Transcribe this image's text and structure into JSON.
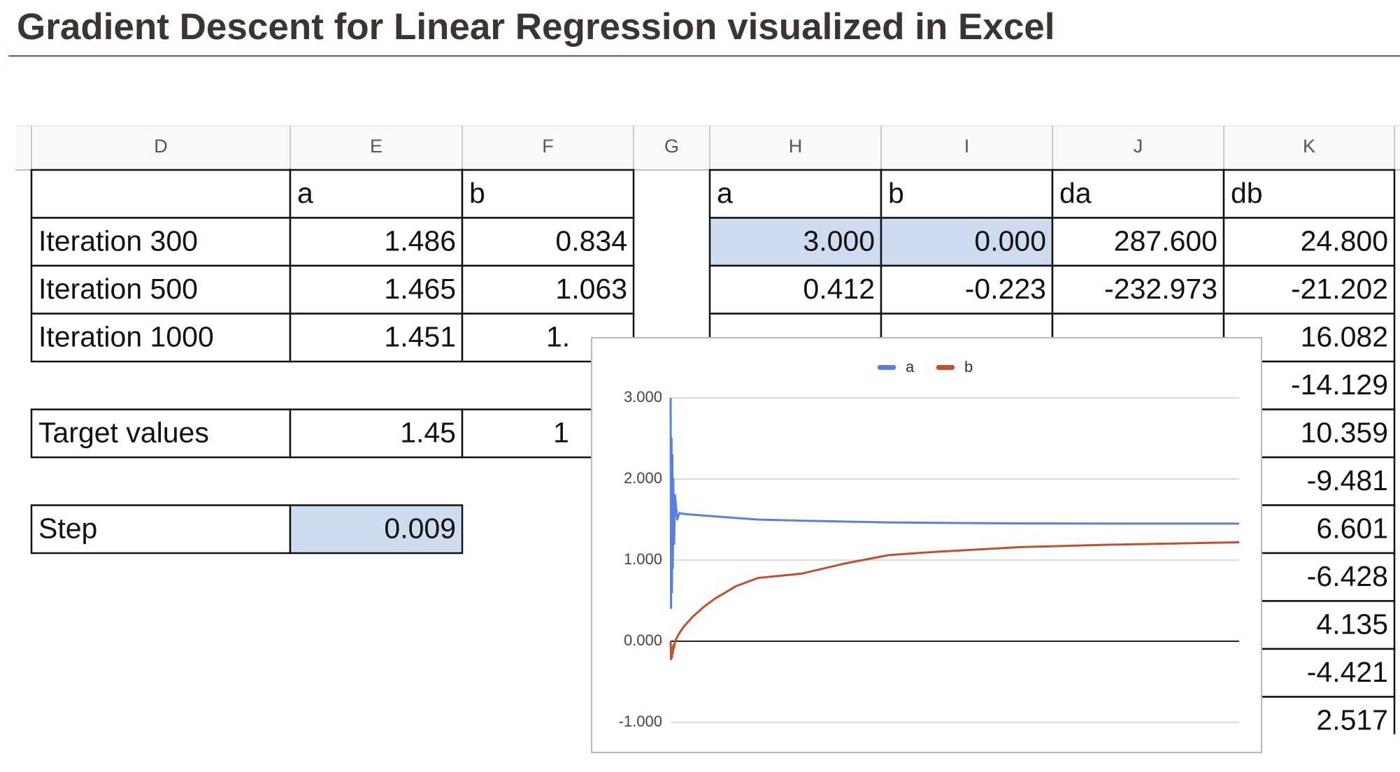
{
  "title": "Gradient Descent for Linear Regression visualized in Excel",
  "column_headers": [
    "D",
    "E",
    "F",
    "G",
    "H",
    "I",
    "J",
    "K"
  ],
  "left_table": {
    "header": [
      "a",
      "b"
    ],
    "rows": [
      [
        "Iteration 300",
        "1.486",
        "0.834"
      ],
      [
        "Iteration 500",
        "1.465",
        "1.063"
      ],
      [
        "Iteration 1000",
        "1.451",
        "1."
      ]
    ]
  },
  "target": [
    "Target values",
    "1.45",
    "1"
  ],
  "step": [
    "Step",
    "0.009"
  ],
  "right_table": {
    "header": [
      "a",
      "b",
      "da",
      "db"
    ],
    "rows": [
      [
        "3.000",
        "0.000",
        "287.600",
        "24.800"
      ],
      [
        "0.412",
        "-0.223",
        "-232.973",
        "-21.202"
      ]
    ],
    "db_more": [
      "16.082",
      "-14.129",
      "10.359",
      "-9.481",
      "6.601",
      "-6.428",
      "4.135",
      "-4.421",
      "2.517"
    ]
  },
  "chart": {
    "type": "line",
    "legend": "top",
    "x": [
      0,
      1,
      2,
      3,
      4,
      5,
      6,
      8,
      10,
      15,
      20,
      30,
      50,
      75,
      100,
      150,
      200,
      300,
      400,
      500,
      600,
      700,
      800,
      1000,
      1200,
      1300
    ],
    "xlim": [
      0,
      1300
    ],
    "ylim": [
      -1,
      3
    ],
    "yticks": [
      {
        "value": -1,
        "label": "-1.000"
      },
      {
        "value": 0,
        "label": "0.000"
      },
      {
        "value": 1,
        "label": "1.000"
      },
      {
        "value": 2,
        "label": "2.000"
      },
      {
        "value": 3,
        "label": "3.000"
      }
    ],
    "grid": true,
    "series": [
      {
        "name": "a",
        "color": "#5b7fe0",
        "values": [
          3.0,
          0.41,
          2.5,
          0.6,
          2.3,
          0.9,
          2.0,
          1.2,
          1.8,
          1.5,
          1.58,
          1.57,
          1.56,
          1.55,
          1.54,
          1.52,
          1.5,
          1.486,
          1.475,
          1.465,
          1.46,
          1.456,
          1.453,
          1.451,
          1.45,
          1.45
        ]
      },
      {
        "name": "b",
        "color": "#c2502f",
        "values": [
          0.0,
          -0.223,
          -0.1,
          -0.2,
          -0.08,
          -0.15,
          -0.05,
          -0.08,
          0.0,
          0.05,
          0.1,
          0.18,
          0.3,
          0.42,
          0.52,
          0.68,
          0.78,
          0.834,
          0.96,
          1.063,
          1.1,
          1.13,
          1.16,
          1.19,
          1.21,
          1.22
        ]
      }
    ]
  }
}
